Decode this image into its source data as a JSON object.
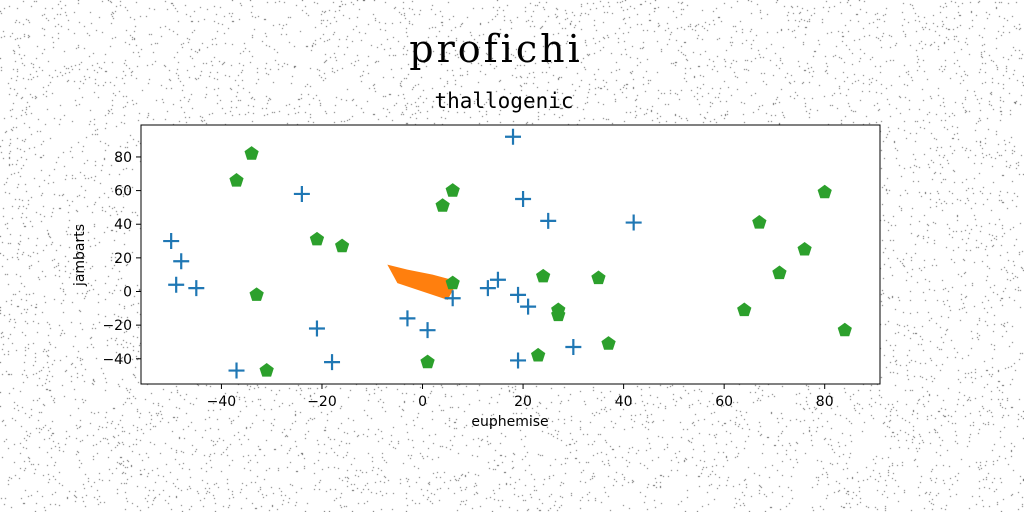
{
  "page": {
    "suptitle": "profichi"
  },
  "chart_data": {
    "type": "scatter",
    "title": "thallogenic",
    "xlabel": "euphemise",
    "ylabel": "jambarts",
    "xlim": [
      -56,
      91
    ],
    "ylim": [
      -55,
      99
    ],
    "xticks": [
      -40,
      -20,
      0,
      20,
      40,
      60,
      80
    ],
    "yticks": [
      -40,
      -20,
      0,
      20,
      40,
      60,
      80
    ],
    "grid": false,
    "legend": "none",
    "series": [
      {
        "marker": "plus",
        "color": "#1f77b4",
        "points": [
          [
            18,
            92
          ],
          [
            -24,
            58
          ],
          [
            20,
            55
          ],
          [
            25,
            42
          ],
          [
            42,
            41
          ],
          [
            -50,
            30
          ],
          [
            -48,
            18
          ],
          [
            -49,
            4
          ],
          [
            -45,
            2
          ],
          [
            15,
            7
          ],
          [
            13,
            2
          ],
          [
            19,
            -2
          ],
          [
            21,
            -9
          ],
          [
            6,
            -4
          ],
          [
            -21,
            -22
          ],
          [
            -3,
            -16
          ],
          [
            1,
            -23
          ],
          [
            -18,
            -42
          ],
          [
            -37,
            -47
          ],
          [
            19,
            -41
          ],
          [
            30,
            -33
          ]
        ]
      },
      {
        "marker": "pentagon",
        "color": "#2ca02c",
        "points": [
          [
            -34,
            82
          ],
          [
            -37,
            66
          ],
          [
            6,
            60
          ],
          [
            4,
            51
          ],
          [
            80,
            59
          ],
          [
            67,
            41
          ],
          [
            76,
            25
          ],
          [
            71,
            11
          ],
          [
            -21,
            31
          ],
          [
            -16,
            27
          ],
          [
            6,
            5
          ],
          [
            24,
            9
          ],
          [
            35,
            8
          ],
          [
            -33,
            -2
          ],
          [
            27,
            -11
          ],
          [
            27,
            -14
          ],
          [
            64,
            -11
          ],
          [
            84,
            -23
          ],
          [
            37,
            -31
          ],
          [
            23,
            -38
          ],
          [
            1,
            -42
          ],
          [
            -31,
            -47
          ]
        ]
      }
    ],
    "polygons": [
      {
        "color": "#ff7f0e",
        "points": [
          [
            -7,
            16
          ],
          [
            -3,
            13
          ],
          [
            2,
            10
          ],
          [
            7,
            6
          ],
          [
            5,
            -5
          ],
          [
            -5,
            5
          ]
        ]
      }
    ]
  }
}
